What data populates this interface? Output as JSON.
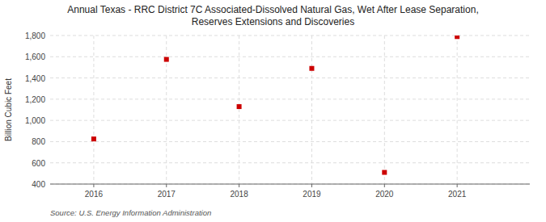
{
  "chart_data": {
    "type": "scatter",
    "title": "Annual Texas - RRC District 7C Associated-Dissolved Natural Gas, Wet After Lease Separation,\nReserves Extensions and Discoveries",
    "y_label": "Billion Cubic Feet",
    "source": "Source: U.S. Energy Information Administration",
    "x": [
      2016,
      2017,
      2018,
      2019,
      2020,
      2021
    ],
    "values": [
      825,
      1575,
      1130,
      1490,
      510,
      1790
    ],
    "color": "#cc0000",
    "marker": "square",
    "xlim": [
      2015.4,
      2022.0
    ],
    "xticks": [
      2016,
      2017,
      2018,
      2019,
      2020,
      2021
    ],
    "ylim": [
      400,
      1800
    ],
    "yticks": [
      400,
      600,
      800,
      {
        "value": 1000,
        "label": "1,000"
      },
      {
        "value": 1200,
        "label": "1,200"
      },
      {
        "value": 1400,
        "label": "1,400"
      },
      {
        "value": 1600,
        "label": "1,600"
      },
      {
        "value": 1800,
        "label": "1,800"
      }
    ],
    "grid": true
  }
}
